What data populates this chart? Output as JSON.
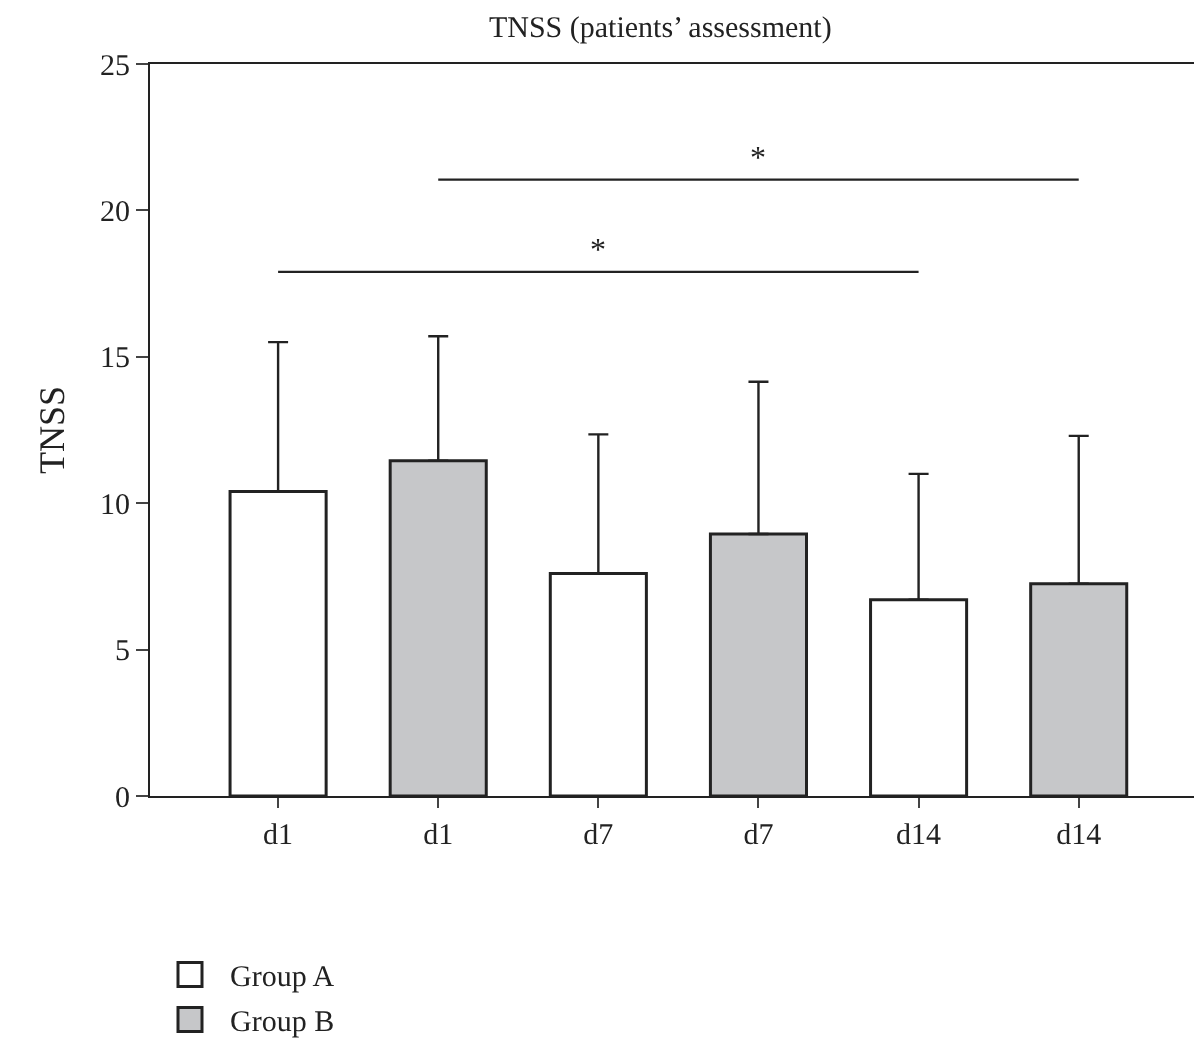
{
  "chart_data": {
    "type": "bar",
    "title": "TNSS (patients’ assessment)",
    "ylabel": "TNSS",
    "categories": [
      "d1",
      "d1",
      "d7",
      "d7",
      "d14",
      "d14"
    ],
    "series": [
      {
        "name": "Group A",
        "color": "#ffffff",
        "values": [
          10.4,
          null,
          7.6,
          null,
          6.7,
          null
        ],
        "errors": [
          [
            10.4,
            15.5
          ],
          null,
          [
            7.6,
            12.35
          ],
          null,
          [
            6.7,
            11.0
          ],
          null
        ]
      },
      {
        "name": "Group B",
        "color": "#c6c7c9",
        "values": [
          null,
          11.45,
          null,
          8.95,
          null,
          7.25
        ],
        "errors": [
          null,
          [
            11.45,
            15.7
          ],
          null,
          [
            8.95,
            14.15
          ],
          null,
          [
            7.25,
            12.3
          ]
        ]
      }
    ],
    "annotations": [
      "*",
      "*"
    ],
    "ylim": [
      0,
      25
    ],
    "yticks": [
      0,
      5,
      10,
      15,
      20,
      25
    ],
    "legend": "bottom left"
  }
}
